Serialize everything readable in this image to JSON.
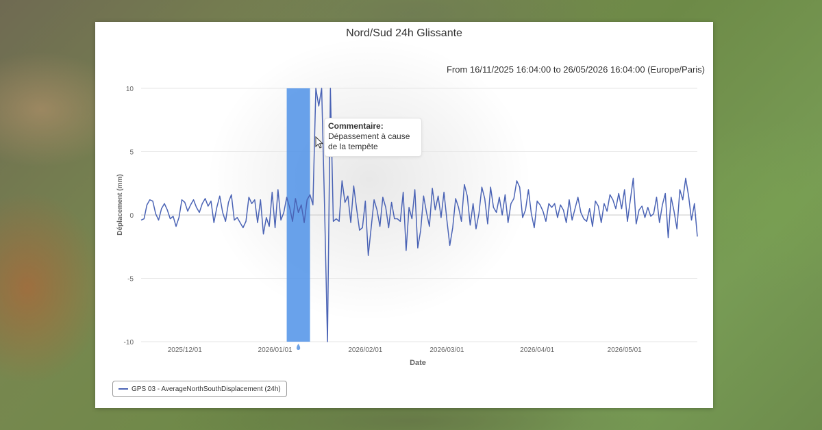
{
  "card": {
    "title": "Nord/Sud 24h Glissante",
    "subtitle": "From 16/11/2025 16:04:00 to 26/05/2026 16:04:00 (Europe/Paris)"
  },
  "tooltip": {
    "title": "Commentaire:",
    "text": "Dépassement à cause de la tempête"
  },
  "legend": {
    "label": "GPS 03 - AverageNorthSouthDisplacement (24h)"
  },
  "colors": {
    "series": "#4a63b5",
    "highlight": "#4f92e8",
    "grid": "#e6e6e6"
  },
  "chart_data": {
    "type": "line",
    "title": "Nord/Sud 24h Glissante",
    "xlabel": "Date",
    "ylabel": "Déplacement (mm)",
    "ylim": [
      -10,
      10
    ],
    "yticks": [
      10,
      5,
      0,
      -5,
      -10
    ],
    "xlim": [
      "2025-11-16",
      "2026-05-26"
    ],
    "xticks": [
      "2025/12/01",
      "2026/01/01",
      "2026/02/01",
      "2026/03/01",
      "2026/04/01",
      "2026/05/01"
    ],
    "grid": true,
    "legend_position": "bottom-left",
    "highlight_band": {
      "from": "2026-01-05",
      "to": "2026-01-13",
      "comment_marker_date": "2026-01-09"
    },
    "series": [
      {
        "name": "GPS 03 - AverageNorthSouthDisplacement (24h)",
        "points": [
          [
            "2025-11-16",
            -0.4
          ],
          [
            "2025-11-17",
            -0.3
          ],
          [
            "2025-11-18",
            0.8
          ],
          [
            "2025-11-19",
            1.2
          ],
          [
            "2025-11-20",
            1.1
          ],
          [
            "2025-11-21",
            0.1
          ],
          [
            "2025-11-22",
            -0.4
          ],
          [
            "2025-11-23",
            0.5
          ],
          [
            "2025-11-24",
            0.9
          ],
          [
            "2025-11-25",
            0.4
          ],
          [
            "2025-11-26",
            -0.3
          ],
          [
            "2025-11-27",
            -0.1
          ],
          [
            "2025-11-28",
            -0.9
          ],
          [
            "2025-11-29",
            -0.2
          ],
          [
            "2025-11-30",
            1.2
          ],
          [
            "2025-12-01",
            1.0
          ],
          [
            "2025-12-02",
            0.3
          ],
          [
            "2025-12-03",
            0.8
          ],
          [
            "2025-12-04",
            1.2
          ],
          [
            "2025-12-05",
            0.6
          ],
          [
            "2025-12-06",
            0.2
          ],
          [
            "2025-12-07",
            0.9
          ],
          [
            "2025-12-08",
            1.3
          ],
          [
            "2025-12-09",
            0.7
          ],
          [
            "2025-12-10",
            1.1
          ],
          [
            "2025-12-11",
            -0.6
          ],
          [
            "2025-12-12",
            0.6
          ],
          [
            "2025-12-13",
            1.5
          ],
          [
            "2025-12-14",
            0.2
          ],
          [
            "2025-12-15",
            -0.5
          ],
          [
            "2025-12-16",
            1.0
          ],
          [
            "2025-12-17",
            1.6
          ],
          [
            "2025-12-18",
            -0.4
          ],
          [
            "2025-12-19",
            -0.2
          ],
          [
            "2025-12-20",
            -0.6
          ],
          [
            "2025-12-21",
            -1.0
          ],
          [
            "2025-12-22",
            -0.5
          ],
          [
            "2025-12-23",
            1.4
          ],
          [
            "2025-12-24",
            0.9
          ],
          [
            "2025-12-25",
            1.2
          ],
          [
            "2025-12-26",
            -0.6
          ],
          [
            "2025-12-27",
            1.2
          ],
          [
            "2025-12-28",
            -1.5
          ],
          [
            "2025-12-29",
            -0.2
          ],
          [
            "2025-12-30",
            -0.9
          ],
          [
            "2025-12-31",
            1.8
          ],
          [
            "2026-01-01",
            -1.0
          ],
          [
            "2026-01-02",
            2.0
          ],
          [
            "2026-01-03",
            -0.4
          ],
          [
            "2026-01-04",
            0.2
          ],
          [
            "2026-01-05",
            1.4
          ],
          [
            "2026-01-06",
            0.6
          ],
          [
            "2026-01-07",
            -0.5
          ],
          [
            "2026-01-08",
            1.3
          ],
          [
            "2026-01-09",
            0.2
          ],
          [
            "2026-01-10",
            0.8
          ],
          [
            "2026-01-11",
            -0.6
          ],
          [
            "2026-01-12",
            1.2
          ],
          [
            "2026-01-13",
            1.6
          ],
          [
            "2026-01-14",
            0.8
          ],
          [
            "2026-01-15",
            10.0
          ],
          [
            "2026-01-16",
            8.6
          ],
          [
            "2026-01-17",
            10.0
          ],
          [
            "2026-01-18",
            0.6
          ],
          [
            "2026-01-19",
            -10.0
          ],
          [
            "2026-01-20",
            10.0
          ],
          [
            "2026-01-21",
            -0.5
          ],
          [
            "2026-01-22",
            -0.3
          ],
          [
            "2026-01-23",
            -0.5
          ],
          [
            "2026-01-24",
            2.7
          ],
          [
            "2026-01-25",
            1.0
          ],
          [
            "2026-01-26",
            1.5
          ],
          [
            "2026-01-27",
            -0.6
          ],
          [
            "2026-01-28",
            2.3
          ],
          [
            "2026-01-29",
            0.5
          ],
          [
            "2026-01-30",
            -1.2
          ],
          [
            "2026-01-31",
            -1.0
          ],
          [
            "2026-02-01",
            1.1
          ],
          [
            "2026-02-02",
            -3.2
          ],
          [
            "2026-02-03",
            -1.0
          ],
          [
            "2026-02-04",
            1.2
          ],
          [
            "2026-02-05",
            0.4
          ],
          [
            "2026-02-06",
            -0.9
          ],
          [
            "2026-02-07",
            1.4
          ],
          [
            "2026-02-08",
            0.6
          ],
          [
            "2026-02-09",
            -1.0
          ],
          [
            "2026-02-10",
            1.0
          ],
          [
            "2026-02-11",
            -0.3
          ],
          [
            "2026-02-12",
            -0.3
          ],
          [
            "2026-02-13",
            -0.5
          ],
          [
            "2026-02-14",
            1.8
          ],
          [
            "2026-02-15",
            -2.8
          ],
          [
            "2026-02-16",
            0.6
          ],
          [
            "2026-02-17",
            -0.3
          ],
          [
            "2026-02-18",
            2.0
          ],
          [
            "2026-02-19",
            -2.6
          ],
          [
            "2026-02-20",
            -1.2
          ],
          [
            "2026-02-21",
            1.5
          ],
          [
            "2026-02-22",
            0.2
          ],
          [
            "2026-02-23",
            -0.9
          ],
          [
            "2026-02-24",
            2.1
          ],
          [
            "2026-02-25",
            0.4
          ],
          [
            "2026-02-26",
            1.5
          ],
          [
            "2026-02-27",
            -0.2
          ],
          [
            "2026-02-28",
            1.8
          ],
          [
            "2026-03-01",
            -0.4
          ],
          [
            "2026-03-02",
            -2.4
          ],
          [
            "2026-03-03",
            -1.0
          ],
          [
            "2026-03-04",
            1.3
          ],
          [
            "2026-03-05",
            0.6
          ],
          [
            "2026-03-06",
            -0.5
          ],
          [
            "2026-03-07",
            2.4
          ],
          [
            "2026-03-08",
            1.5
          ],
          [
            "2026-03-09",
            -0.8
          ],
          [
            "2026-03-10",
            0.9
          ],
          [
            "2026-03-11",
            -1.1
          ],
          [
            "2026-03-12",
            0.1
          ],
          [
            "2026-03-13",
            2.2
          ],
          [
            "2026-03-14",
            1.3
          ],
          [
            "2026-03-15",
            -0.7
          ],
          [
            "2026-03-16",
            2.2
          ],
          [
            "2026-03-17",
            0.6
          ],
          [
            "2026-03-18",
            0.2
          ],
          [
            "2026-03-19",
            1.4
          ],
          [
            "2026-03-20",
            0.0
          ],
          [
            "2026-03-21",
            1.6
          ],
          [
            "2026-03-22",
            -0.6
          ],
          [
            "2026-03-23",
            0.9
          ],
          [
            "2026-03-24",
            1.3
          ],
          [
            "2026-03-25",
            2.7
          ],
          [
            "2026-03-26",
            2.2
          ],
          [
            "2026-03-27",
            -0.2
          ],
          [
            "2026-03-28",
            0.4
          ],
          [
            "2026-03-29",
            2.0
          ],
          [
            "2026-03-30",
            0.1
          ],
          [
            "2026-03-31",
            -1.0
          ],
          [
            "2026-04-01",
            1.1
          ],
          [
            "2026-04-02",
            0.8
          ],
          [
            "2026-04-03",
            0.3
          ],
          [
            "2026-04-04",
            -0.5
          ],
          [
            "2026-04-05",
            0.9
          ],
          [
            "2026-04-06",
            0.6
          ],
          [
            "2026-04-07",
            0.9
          ],
          [
            "2026-04-08",
            -0.2
          ],
          [
            "2026-04-09",
            0.8
          ],
          [
            "2026-04-10",
            0.4
          ],
          [
            "2026-04-11",
            -0.6
          ],
          [
            "2026-04-12",
            1.2
          ],
          [
            "2026-04-13",
            -0.4
          ],
          [
            "2026-04-14",
            0.5
          ],
          [
            "2026-04-15",
            1.4
          ],
          [
            "2026-04-16",
            0.2
          ],
          [
            "2026-04-17",
            -0.3
          ],
          [
            "2026-04-18",
            -0.5
          ],
          [
            "2026-04-19",
            0.5
          ],
          [
            "2026-04-20",
            -0.9
          ],
          [
            "2026-04-21",
            1.1
          ],
          [
            "2026-04-22",
            0.7
          ],
          [
            "2026-04-23",
            -0.6
          ],
          [
            "2026-04-24",
            0.9
          ],
          [
            "2026-04-25",
            0.3
          ],
          [
            "2026-04-26",
            1.6
          ],
          [
            "2026-04-27",
            1.2
          ],
          [
            "2026-04-28",
            0.5
          ],
          [
            "2026-04-29",
            1.7
          ],
          [
            "2026-04-30",
            0.5
          ],
          [
            "2026-05-01",
            2.0
          ],
          [
            "2026-05-02",
            -0.5
          ],
          [
            "2026-05-03",
            1.2
          ],
          [
            "2026-05-04",
            2.9
          ],
          [
            "2026-05-05",
            -0.7
          ],
          [
            "2026-05-06",
            0.4
          ],
          [
            "2026-05-07",
            0.7
          ],
          [
            "2026-05-08",
            -0.2
          ],
          [
            "2026-05-09",
            0.6
          ],
          [
            "2026-05-10",
            -0.1
          ],
          [
            "2026-05-11",
            0.1
          ],
          [
            "2026-05-12",
            1.4
          ],
          [
            "2026-05-13",
            -0.6
          ],
          [
            "2026-05-14",
            0.8
          ],
          [
            "2026-05-15",
            1.7
          ],
          [
            "2026-05-16",
            -1.8
          ],
          [
            "2026-05-17",
            1.4
          ],
          [
            "2026-05-18",
            0.3
          ],
          [
            "2026-05-19",
            -1.1
          ],
          [
            "2026-05-20",
            2.0
          ],
          [
            "2026-05-21",
            1.2
          ],
          [
            "2026-05-22",
            2.9
          ],
          [
            "2026-05-23",
            1.5
          ],
          [
            "2026-05-24",
            -0.4
          ],
          [
            "2026-05-25",
            0.9
          ],
          [
            "2026-05-26",
            -1.7
          ]
        ]
      }
    ]
  }
}
